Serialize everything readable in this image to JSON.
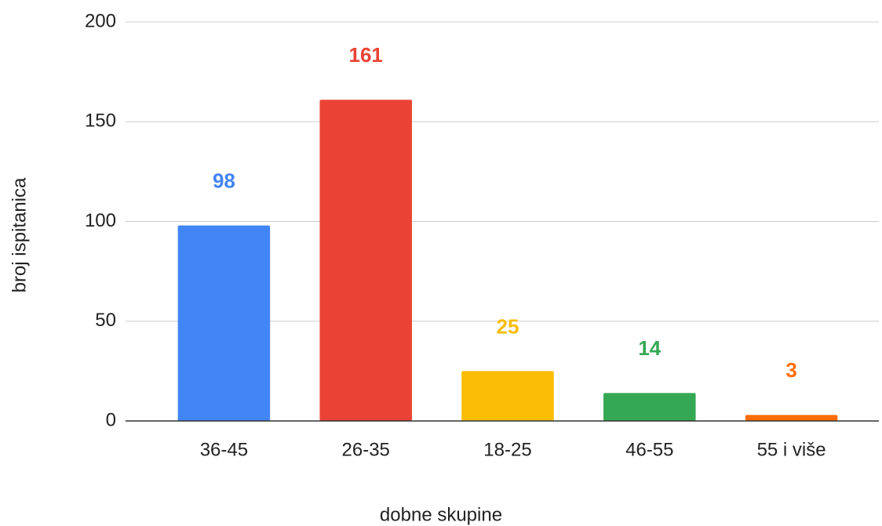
{
  "chart_data": {
    "type": "bar",
    "categories": [
      "36-45",
      "26-35",
      "18-25",
      "46-55",
      "55 i više"
    ],
    "values": [
      98,
      161,
      25,
      14,
      3
    ],
    "colors": [
      "#4285f4",
      "#ea4335",
      "#fbbc04",
      "#34a853",
      "#ff6d01"
    ],
    "xlabel": "dobne skupine",
    "ylabel": "broj ispitanica",
    "ylim": [
      0,
      200
    ],
    "yticks": [
      0,
      50,
      100,
      150,
      200
    ],
    "grid": true
  }
}
